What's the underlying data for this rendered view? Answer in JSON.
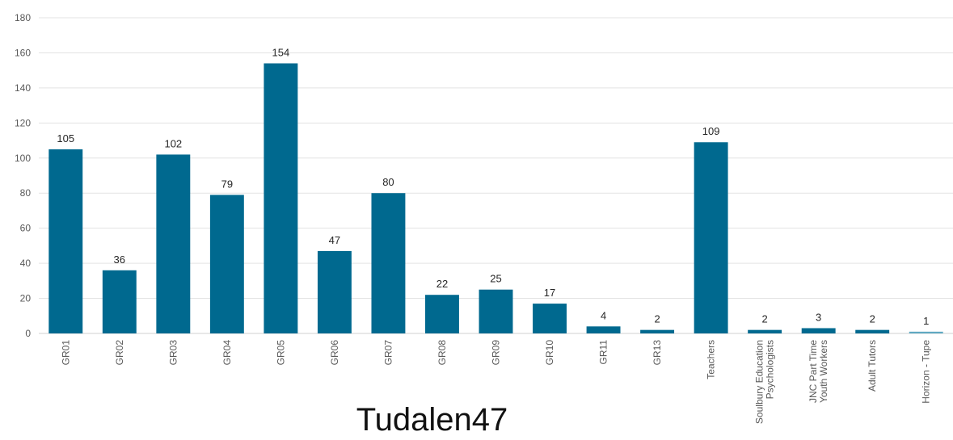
{
  "watermark_text": "Tudalen47",
  "colors": {
    "bar": "#00698f",
    "bar_light": "#5fa9c2",
    "grid": "#e3e3e3",
    "text": "#595959"
  },
  "chart_data": {
    "type": "bar",
    "title": "",
    "xlabel": "",
    "ylabel": "",
    "ylim": [
      0,
      180
    ],
    "yticks": [
      0,
      20,
      40,
      60,
      80,
      100,
      120,
      140,
      160,
      180
    ],
    "grid": true,
    "categories": [
      "GR01",
      "GR02",
      "GR03",
      "GR04",
      "GR05",
      "GR06",
      "GR07",
      "GR08",
      "GR09",
      "GR10",
      "GR11",
      "GR13",
      "Teachers",
      "Soulbury Education Psychologists",
      "JNC Part Time Youth Workers",
      "Adult Tutors",
      "Horizon - Tupe"
    ],
    "category_lines": [
      [
        "GR01"
      ],
      [
        "GR02"
      ],
      [
        "GR03"
      ],
      [
        "GR04"
      ],
      [
        "GR05"
      ],
      [
        "GR06"
      ],
      [
        "GR07"
      ],
      [
        "GR08"
      ],
      [
        "GR09"
      ],
      [
        "GR10"
      ],
      [
        "GR11"
      ],
      [
        "GR13"
      ],
      [
        "Teachers"
      ],
      [
        "Soulbury Education",
        "Psychologists"
      ],
      [
        "JNC Part Time",
        "Youth Workers"
      ],
      [
        "Adult Tutors"
      ],
      [
        "Horizon - Tupe"
      ]
    ],
    "values": [
      105,
      36,
      102,
      79,
      154,
      47,
      80,
      22,
      25,
      17,
      4,
      2,
      109,
      2,
      3,
      2,
      1
    ],
    "data_labels": [
      "105",
      "36",
      "102",
      "79",
      "154",
      "47",
      "80",
      "22",
      "25",
      "17",
      "4",
      "2",
      "109",
      "2",
      "3",
      "2",
      "1"
    ]
  }
}
